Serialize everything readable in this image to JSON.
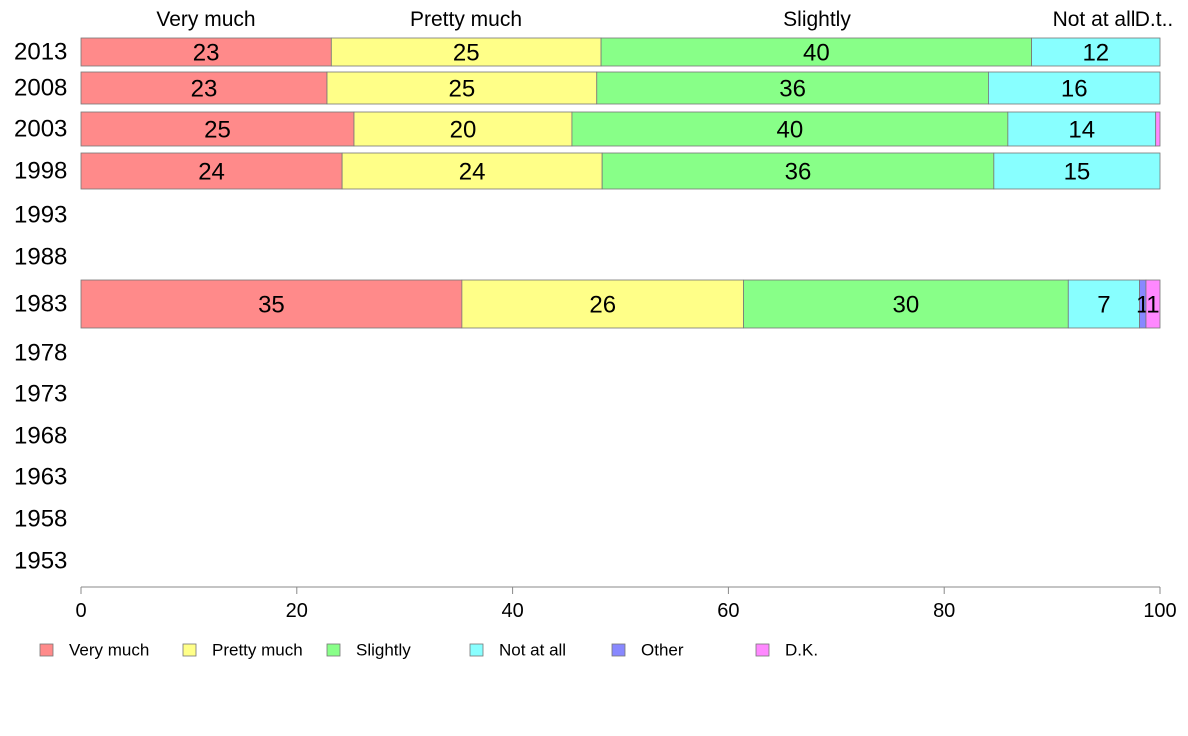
{
  "chart_data": {
    "type": "bar",
    "orientation": "horizontal",
    "stacked": true,
    "categories": [
      "2013",
      "2008",
      "2003",
      "1998",
      "1993",
      "1988",
      "1983",
      "1978",
      "1973",
      "1968",
      "1963",
      "1958",
      "1953"
    ],
    "series": [
      {
        "name": "Very much",
        "color": "#ff8a8a",
        "values": [
          23.2,
          22.8,
          25.3,
          24.2,
          null,
          null,
          35.3,
          null,
          null,
          null,
          null,
          null,
          null
        ],
        "labels": [
          "23",
          "23",
          "25",
          "24",
          "",
          "",
          "35",
          "",
          "",
          "",
          "",
          "",
          ""
        ]
      },
      {
        "name": "Pretty much",
        "color": "#ffff88",
        "values": [
          25.0,
          25.0,
          20.2,
          24.1,
          null,
          null,
          26.1,
          null,
          null,
          null,
          null,
          null,
          null
        ],
        "labels": [
          "25",
          "25",
          "20",
          "24",
          "",
          "",
          "26",
          "",
          "",
          "",
          "",
          "",
          ""
        ]
      },
      {
        "name": "Slightly",
        "color": "#88ff88",
        "values": [
          39.9,
          36.3,
          40.4,
          36.3,
          null,
          null,
          30.1,
          null,
          null,
          null,
          null,
          null,
          null
        ],
        "labels": [
          "40",
          "36",
          "40",
          "36",
          "",
          "",
          "30",
          "",
          "",
          "",
          "",
          "",
          ""
        ]
      },
      {
        "name": "Not at all",
        "color": "#88ffff",
        "values": [
          11.9,
          15.9,
          13.7,
          15.4,
          null,
          null,
          6.6,
          null,
          null,
          null,
          null,
          null,
          null
        ],
        "labels": [
          "12",
          "16",
          "14",
          "15",
          "",
          "",
          "7",
          "",
          "",
          "",
          "",
          "",
          ""
        ]
      },
      {
        "name": "Other",
        "color": "#8888ff",
        "values": [
          0,
          0,
          0,
          0,
          null,
          null,
          0.6,
          null,
          null,
          null,
          null,
          null,
          null
        ],
        "labels": [
          "",
          "",
          "",
          "",
          "",
          "",
          "1",
          "",
          "",
          "",
          "",
          "",
          ""
        ]
      },
      {
        "name": "D.K.",
        "color": "#ff88ff",
        "values": [
          0,
          0,
          0.4,
          0,
          null,
          null,
          1.3,
          null,
          null,
          null,
          null,
          null,
          null
        ],
        "labels": [
          "",
          "",
          "",
          "",
          "",
          "",
          "1",
          "",
          "",
          "",
          "",
          "",
          ""
        ]
      }
    ],
    "top_labels": [
      "Very much",
      "Pretty much",
      "Slightly",
      "Not at all",
      "D.t.."
    ],
    "xlim": [
      0,
      100
    ],
    "xticks": [
      0,
      20,
      40,
      60,
      80,
      100
    ],
    "grid": false,
    "legend_position": "bottom"
  }
}
